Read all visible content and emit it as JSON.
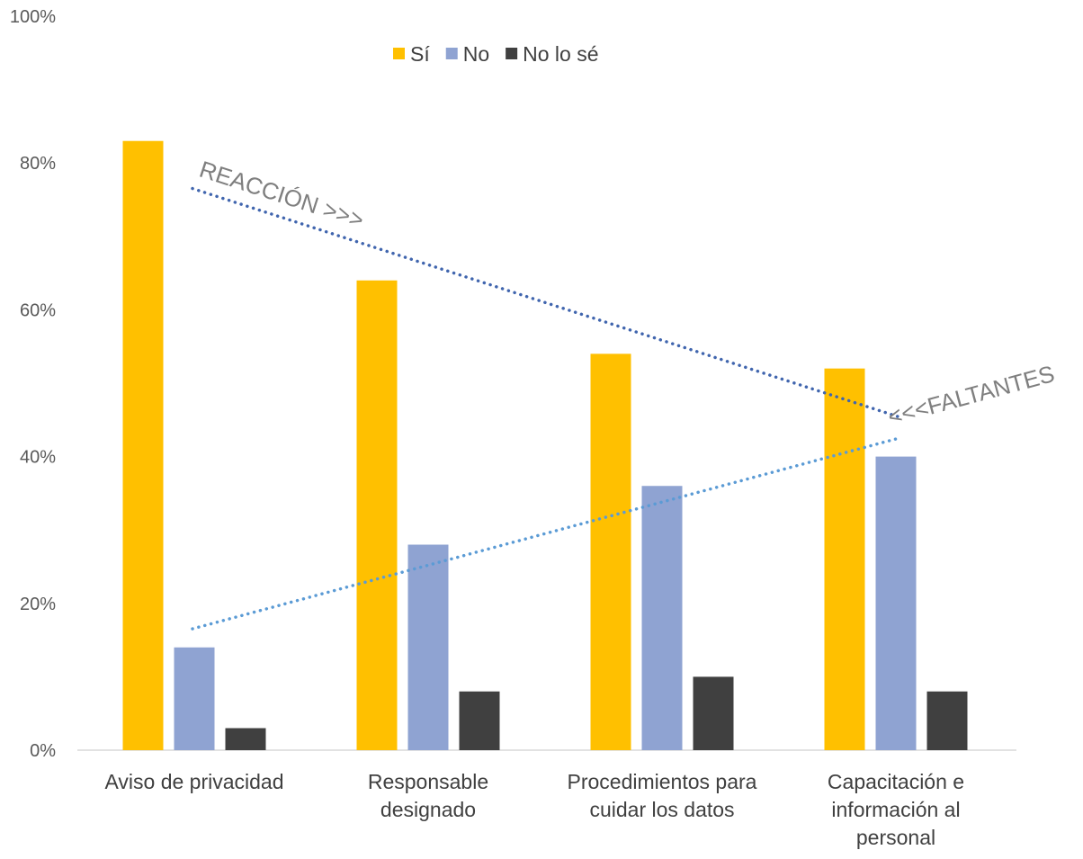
{
  "chart_data": {
    "type": "bar",
    "categories": [
      [
        "Aviso de privacidad"
      ],
      [
        "Responsable",
        "designado"
      ],
      [
        "Procedimientos para",
        "cuidar los datos"
      ],
      [
        "Capacitación e",
        "información al",
        "personal"
      ]
    ],
    "series": [
      {
        "name": "Sí",
        "color": "#FFC000",
        "values": [
          83,
          64,
          54,
          52
        ]
      },
      {
        "name": "No",
        "color": "#8FA3D2",
        "values": [
          14,
          28,
          36,
          40
        ]
      },
      {
        "name": "No lo sé",
        "color": "#404040",
        "values": [
          3,
          8,
          10,
          8
        ]
      }
    ],
    "ylim": [
      0,
      100
    ],
    "yticks": [
      "0%",
      "20%",
      "40%",
      "60%",
      "80%",
      "100%"
    ],
    "legend_position": "top",
    "trendlines": [
      {
        "label": "REACCIÓN >>>",
        "series": "Sí",
        "color": "#4065AE",
        "style": "dotted"
      },
      {
        "label": "<<<FALTANTES",
        "series": "No",
        "color": "#5B9BD5",
        "style": "dotted"
      }
    ]
  }
}
